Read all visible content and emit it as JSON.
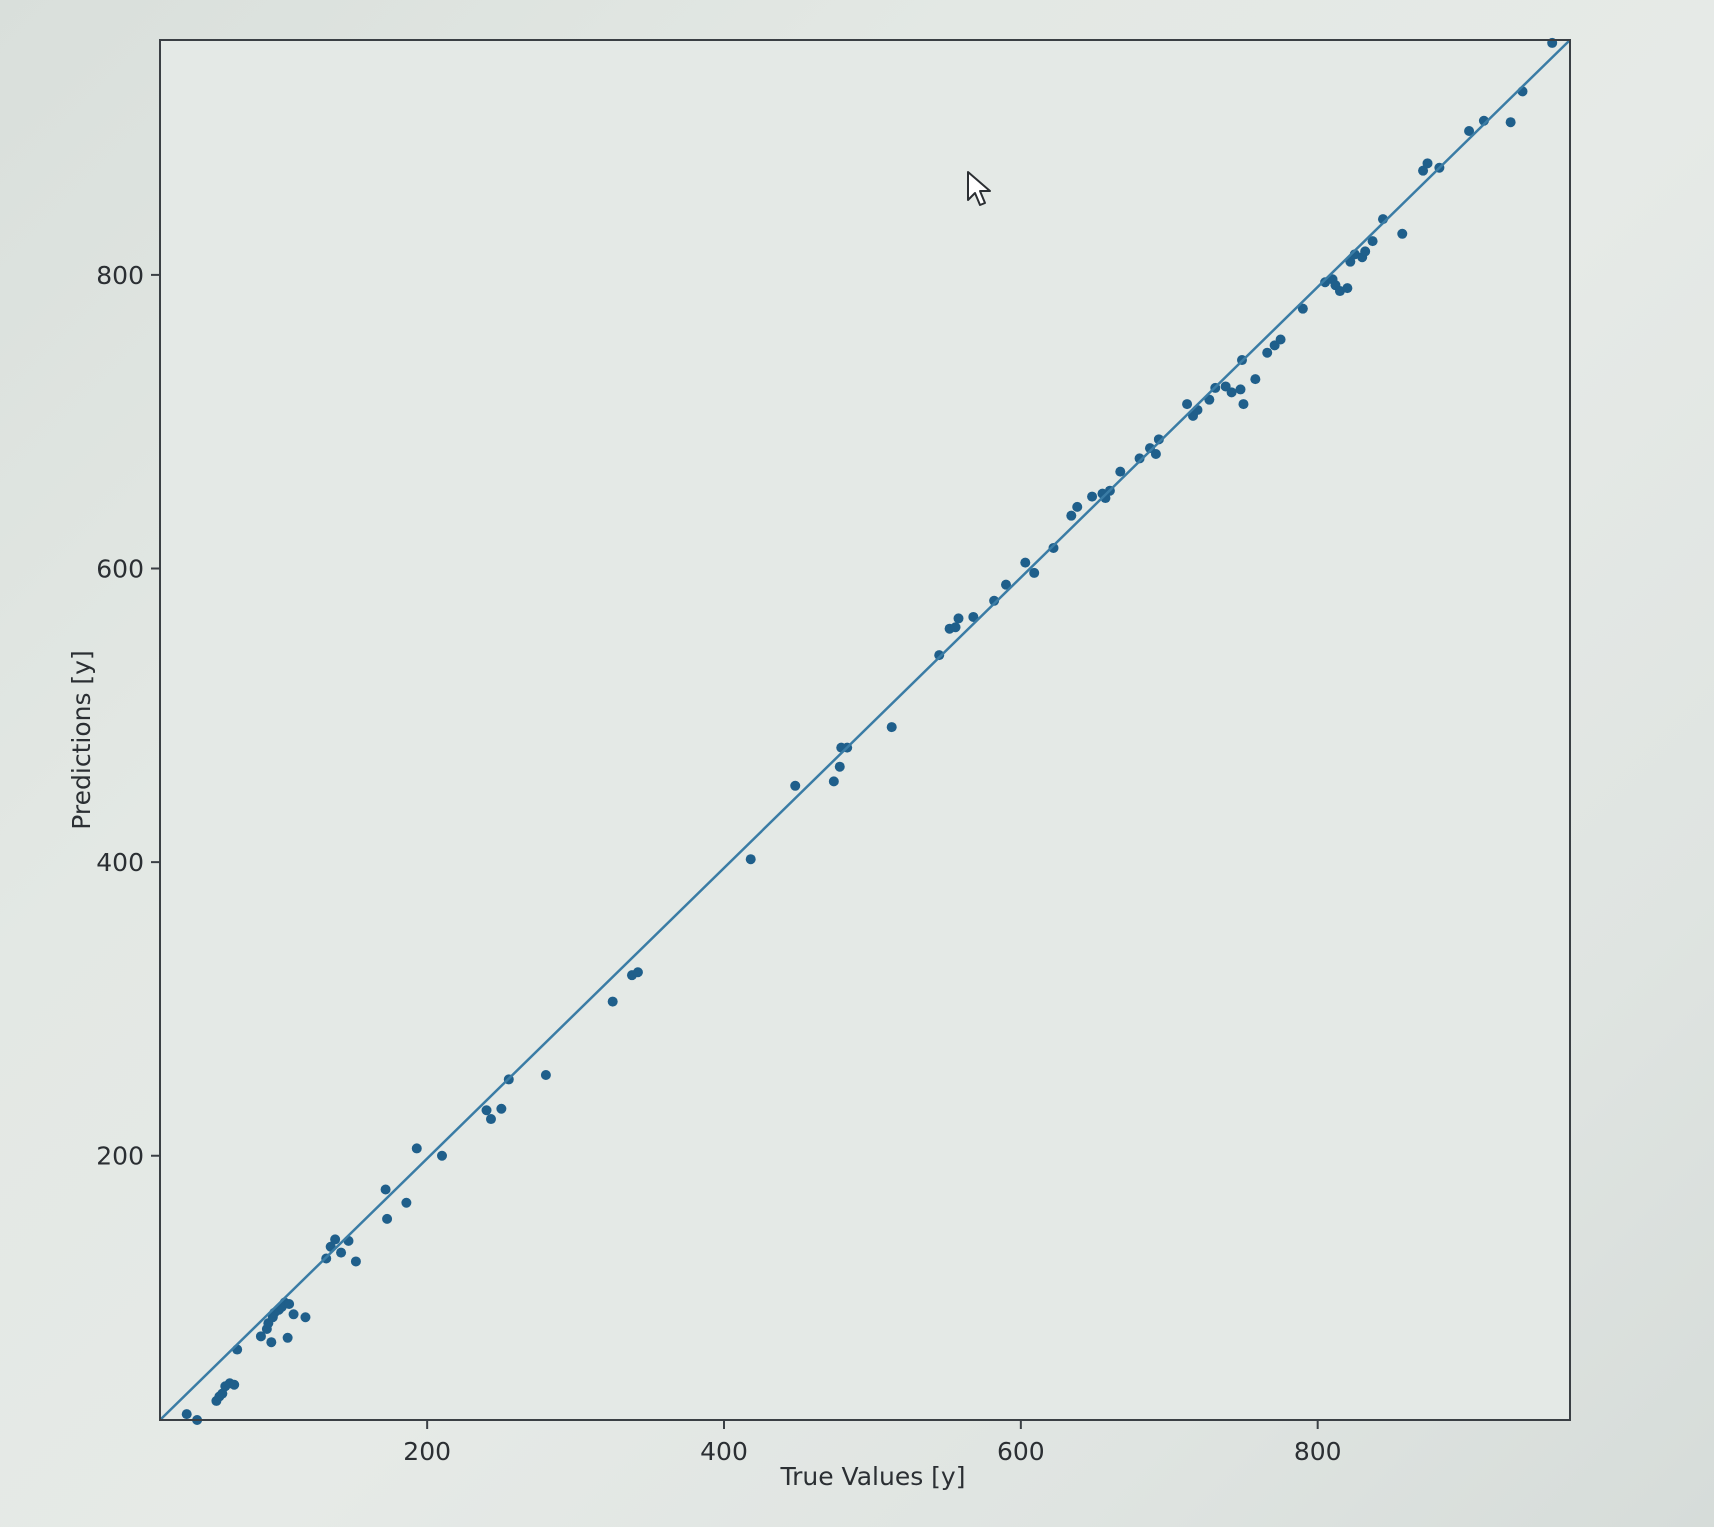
{
  "chart_data": {
    "type": "scatter",
    "xlabel": "True Values [y]",
    "ylabel": "Predictions [y]",
    "xlim": [
      20,
      970
    ],
    "ylim": [
      20,
      960
    ],
    "x_ticks": [
      200,
      400,
      600,
      800
    ],
    "y_ticks": [
      200,
      400,
      600,
      800
    ],
    "x_tick_labels": [
      "200",
      "400",
      "600",
      "800"
    ],
    "y_tick_labels": [
      "200",
      "400",
      "600",
      "800"
    ],
    "grid": false,
    "reference_line": {
      "from": [
        20,
        20
      ],
      "to": [
        970,
        960
      ]
    },
    "colors": {
      "points": "#1f5f8b",
      "line": "#3a7ca5",
      "frame": "#3a3f44"
    },
    "points": [
      {
        "x": 38,
        "y": 24
      },
      {
        "x": 45,
        "y": 20
      },
      {
        "x": 58,
        "y": 33
      },
      {
        "x": 60,
        "y": 36
      },
      {
        "x": 62,
        "y": 38
      },
      {
        "x": 64,
        "y": 43
      },
      {
        "x": 67,
        "y": 45
      },
      {
        "x": 70,
        "y": 44
      },
      {
        "x": 72,
        "y": 68
      },
      {
        "x": 88,
        "y": 77
      },
      {
        "x": 92,
        "y": 82
      },
      {
        "x": 93,
        "y": 86
      },
      {
        "x": 95,
        "y": 73
      },
      {
        "x": 96,
        "y": 90
      },
      {
        "x": 97,
        "y": 93
      },
      {
        "x": 100,
        "y": 95
      },
      {
        "x": 102,
        "y": 97
      },
      {
        "x": 104,
        "y": 100
      },
      {
        "x": 106,
        "y": 76
      },
      {
        "x": 107,
        "y": 99
      },
      {
        "x": 110,
        "y": 92
      },
      {
        "x": 118,
        "y": 90
      },
      {
        "x": 132,
        "y": 130
      },
      {
        "x": 135,
        "y": 138
      },
      {
        "x": 138,
        "y": 143
      },
      {
        "x": 142,
        "y": 134
      },
      {
        "x": 147,
        "y": 142
      },
      {
        "x": 152,
        "y": 128
      },
      {
        "x": 172,
        "y": 177
      },
      {
        "x": 173,
        "y": 157
      },
      {
        "x": 186,
        "y": 168
      },
      {
        "x": 193,
        "y": 205
      },
      {
        "x": 210,
        "y": 200
      },
      {
        "x": 240,
        "y": 231
      },
      {
        "x": 243,
        "y": 225
      },
      {
        "x": 250,
        "y": 232
      },
      {
        "x": 255,
        "y": 252
      },
      {
        "x": 280,
        "y": 255
      },
      {
        "x": 325,
        "y": 305
      },
      {
        "x": 338,
        "y": 323
      },
      {
        "x": 342,
        "y": 325
      },
      {
        "x": 418,
        "y": 402
      },
      {
        "x": 448,
        "y": 452
      },
      {
        "x": 474,
        "y": 455
      },
      {
        "x": 478,
        "y": 465
      },
      {
        "x": 479,
        "y": 478
      },
      {
        "x": 483,
        "y": 478
      },
      {
        "x": 513,
        "y": 492
      },
      {
        "x": 545,
        "y": 541
      },
      {
        "x": 552,
        "y": 559
      },
      {
        "x": 556,
        "y": 560
      },
      {
        "x": 558,
        "y": 566
      },
      {
        "x": 568,
        "y": 567
      },
      {
        "x": 582,
        "y": 578
      },
      {
        "x": 590,
        "y": 589
      },
      {
        "x": 603,
        "y": 604
      },
      {
        "x": 609,
        "y": 597
      },
      {
        "x": 622,
        "y": 614
      },
      {
        "x": 634,
        "y": 636
      },
      {
        "x": 638,
        "y": 642
      },
      {
        "x": 648,
        "y": 649
      },
      {
        "x": 655,
        "y": 651
      },
      {
        "x": 657,
        "y": 648
      },
      {
        "x": 660,
        "y": 653
      },
      {
        "x": 667,
        "y": 666
      },
      {
        "x": 680,
        "y": 675
      },
      {
        "x": 687,
        "y": 682
      },
      {
        "x": 691,
        "y": 678
      },
      {
        "x": 693,
        "y": 688
      },
      {
        "x": 712,
        "y": 712
      },
      {
        "x": 716,
        "y": 704
      },
      {
        "x": 719,
        "y": 708
      },
      {
        "x": 727,
        "y": 715
      },
      {
        "x": 731,
        "y": 723
      },
      {
        "x": 738,
        "y": 724
      },
      {
        "x": 742,
        "y": 720
      },
      {
        "x": 748,
        "y": 722
      },
      {
        "x": 749,
        "y": 742
      },
      {
        "x": 750,
        "y": 712
      },
      {
        "x": 758,
        "y": 729
      },
      {
        "x": 766,
        "y": 747
      },
      {
        "x": 771,
        "y": 752
      },
      {
        "x": 775,
        "y": 756
      },
      {
        "x": 790,
        "y": 777
      },
      {
        "x": 805,
        "y": 795
      },
      {
        "x": 810,
        "y": 797
      },
      {
        "x": 812,
        "y": 793
      },
      {
        "x": 815,
        "y": 789
      },
      {
        "x": 820,
        "y": 791
      },
      {
        "x": 822,
        "y": 809
      },
      {
        "x": 825,
        "y": 814
      },
      {
        "x": 830,
        "y": 812
      },
      {
        "x": 832,
        "y": 816
      },
      {
        "x": 837,
        "y": 823
      },
      {
        "x": 844,
        "y": 838
      },
      {
        "x": 857,
        "y": 828
      },
      {
        "x": 871,
        "y": 871
      },
      {
        "x": 874,
        "y": 876
      },
      {
        "x": 882,
        "y": 873
      },
      {
        "x": 902,
        "y": 898
      },
      {
        "x": 912,
        "y": 905
      },
      {
        "x": 930,
        "y": 904
      },
      {
        "x": 938,
        "y": 925
      },
      {
        "x": 958,
        "y": 958
      }
    ]
  }
}
